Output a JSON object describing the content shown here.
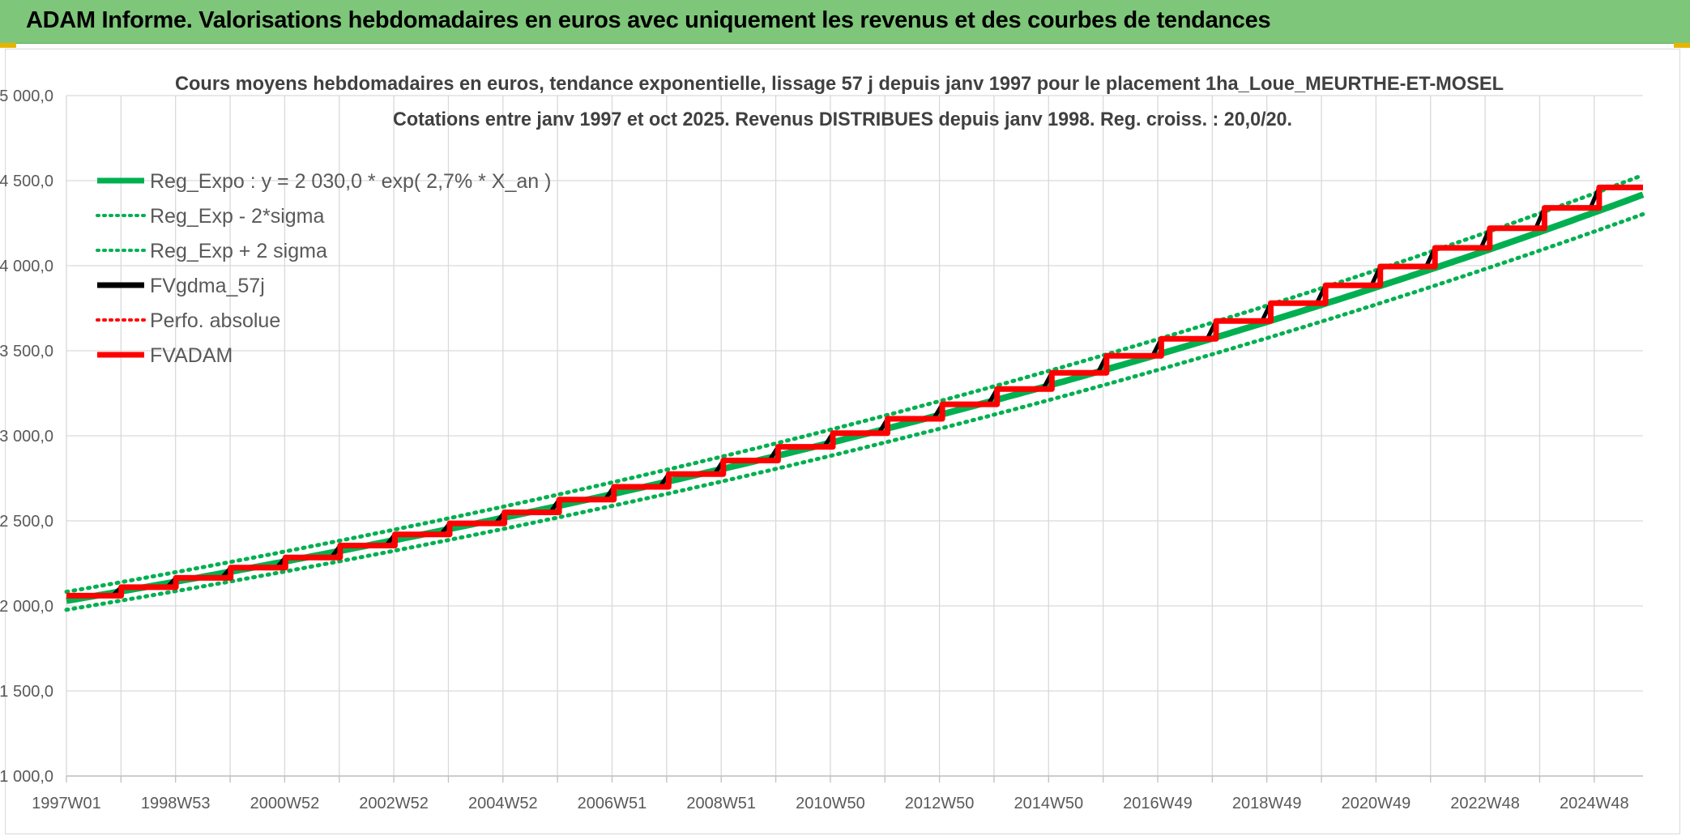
{
  "banner": {
    "title": "ADAM Informe. Valorisations hebdomadaires en euros avec uniquement les revenus et des courbes de tendances"
  },
  "chart_data": {
    "type": "line",
    "title": "Cours moyens hebdomadaires en euros, tendance exponentielle, lissage 57 j depuis janv 1997 pour le placement 1ha_Loue_MEURTHE-ET-MOSEL",
    "subtitle": "Cotations entre janv 1997 et oct 2025. Revenus DISTRIBUES depuis janv 1998. Reg. croiss. : 20,0/20.",
    "xlabel": "",
    "ylabel": "",
    "ylim": [
      1000,
      5000
    ],
    "yticks": [
      "1 000,0",
      "1 500,0",
      "2 000,0",
      "2 500,0",
      "3 000,0",
      "3 500,0",
      "4 000,0",
      "4 500,0",
      "5 000,0"
    ],
    "xlim": [
      1997.0,
      2025.8
    ],
    "xticks": [
      "1997W01",
      "1998W53",
      "2000W52",
      "2002W52",
      "2004W52",
      "2006W51",
      "2008W51",
      "2010W50",
      "2012W50",
      "2014W50",
      "2016W49",
      "2018W49",
      "2020W49",
      "2022W48",
      "2024W48"
    ],
    "grid": true,
    "legend_position": "top-left",
    "regression": {
      "a": 2030.0,
      "rate": 0.027,
      "band_factor": 0.026
    },
    "series": [
      {
        "name": "Reg_Expo : y = 2 030,0 * exp( 2,7% *  X_an )",
        "color": "#00b050",
        "style": "solid"
      },
      {
        "name": "Reg_Exp - 2*sigma",
        "color": "#00b050",
        "style": "dotted"
      },
      {
        "name": "Reg_Exp + 2 sigma",
        "color": "#00b050",
        "style": "dotted"
      },
      {
        "name": "FVgdma_57j",
        "color": "#000000",
        "style": "solid"
      },
      {
        "name": "Perfo. absolue",
        "color": "#ff0000",
        "style": "dotted"
      },
      {
        "name": "FVADAM",
        "color": "#ff0000",
        "style": "solid",
        "steps": [
          {
            "year": 1997,
            "value": 2060
          },
          {
            "year": 1998,
            "value": 2110
          },
          {
            "year": 1999,
            "value": 2165
          },
          {
            "year": 2000,
            "value": 2225
          },
          {
            "year": 2001,
            "value": 2285
          },
          {
            "year": 2002,
            "value": 2355
          },
          {
            "year": 2003,
            "value": 2420
          },
          {
            "year": 2004,
            "value": 2485
          },
          {
            "year": 2005,
            "value": 2550
          },
          {
            "year": 2006,
            "value": 2625
          },
          {
            "year": 2007,
            "value": 2700
          },
          {
            "year": 2008,
            "value": 2775
          },
          {
            "year": 2009,
            "value": 2855
          },
          {
            "year": 2010,
            "value": 2935
          },
          {
            "year": 2011,
            "value": 3015
          },
          {
            "year": 2012,
            "value": 3100
          },
          {
            "year": 2013,
            "value": 3185
          },
          {
            "year": 2014,
            "value": 3275
          },
          {
            "year": 2015,
            "value": 3370
          },
          {
            "year": 2016,
            "value": 3470
          },
          {
            "year": 2017,
            "value": 3570
          },
          {
            "year": 2018,
            "value": 3675
          },
          {
            "year": 2019,
            "value": 3780
          },
          {
            "year": 2020,
            "value": 3885
          },
          {
            "year": 2021,
            "value": 3995
          },
          {
            "year": 2022,
            "value": 4105
          },
          {
            "year": 2023,
            "value": 4220
          },
          {
            "year": 2024,
            "value": 4340
          },
          {
            "year": 2025,
            "value": 4460
          }
        ]
      }
    ]
  }
}
